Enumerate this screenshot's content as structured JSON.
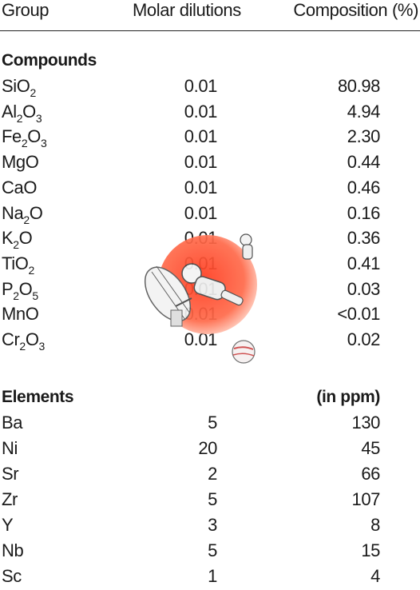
{
  "header": {
    "group": "Group",
    "molar": "Molar dilutions",
    "composition": "Composition (%)"
  },
  "compounds": {
    "title": "Compounds",
    "rows": [
      {
        "parts": [
          "SiO",
          "2",
          ""
        ],
        "subs": [
          false,
          true
        ],
        "molar": "0.01",
        "comp": "80.98"
      },
      {
        "parts": [
          "Al",
          "2",
          "O",
          "3"
        ],
        "molar": "0.01",
        "comp": "4.94"
      },
      {
        "parts": [
          "Fe",
          "2",
          "O",
          "3"
        ],
        "molar": "0.01",
        "comp": "2.30"
      },
      {
        "parts": [
          "MgO"
        ],
        "molar": "0.01",
        "comp": "0.44"
      },
      {
        "parts": [
          "CaO"
        ],
        "molar": "0.01",
        "comp": "0.46"
      },
      {
        "parts": [
          "Na",
          "2",
          "O"
        ],
        "molar": "0.01",
        "comp": "0.16"
      },
      {
        "parts": [
          "K",
          "2",
          "O"
        ],
        "molar": "0.01",
        "comp": "0.36"
      },
      {
        "parts": [
          "TiO",
          "2"
        ],
        "molar": "0.01",
        "comp": "0.41"
      },
      {
        "parts": [
          "P",
          "2",
          "O",
          "5"
        ],
        "molar": "0.01",
        "comp": "0.03"
      },
      {
        "parts": [
          "MnO"
        ],
        "molar": "0.01",
        "comp": "<0.01"
      },
      {
        "parts": [
          "Cr",
          "2",
          "O",
          "3"
        ],
        "molar": "0.01",
        "comp": "0.02"
      }
    ]
  },
  "elements": {
    "title": "Elements",
    "unit": "(in ppm)",
    "rows": [
      {
        "name": "Ba",
        "molar": "5",
        "comp": "130"
      },
      {
        "name": "Ni",
        "molar": "20",
        "comp": "45"
      },
      {
        "name": "Sr",
        "molar": "2",
        "comp": "66"
      },
      {
        "name": "Zr",
        "molar": "5",
        "comp": "107"
      },
      {
        "name": "Y",
        "molar": "3",
        "comp": "8"
      },
      {
        "name": "Nb",
        "molar": "5",
        "comp": "15"
      },
      {
        "name": "Sc",
        "molar": "1",
        "comp": "4"
      }
    ]
  }
}
